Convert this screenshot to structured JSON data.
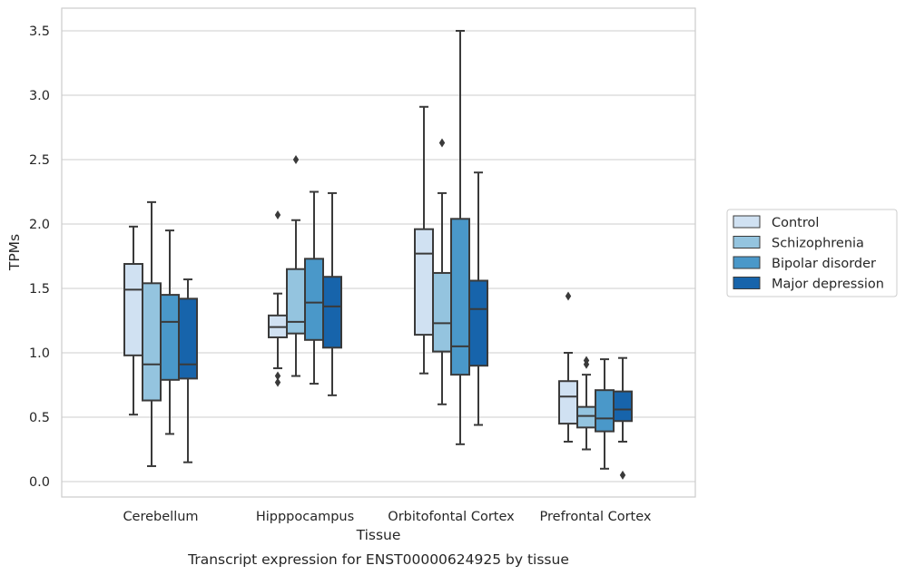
{
  "chart_data": {
    "type": "boxplot",
    "title": "",
    "caption": "Transcript expression for ENST00000624925 by tissue",
    "xlabel": "Tissue",
    "ylabel": "TPMs",
    "ylim": [
      -0.12,
      3.67
    ],
    "yticks": [
      0.0,
      0.5,
      1.0,
      1.5,
      2.0,
      2.5,
      3.0,
      3.5
    ],
    "ytick_labels": [
      "0.0",
      "0.5",
      "1.0",
      "1.5",
      "2.0",
      "2.5",
      "3.0",
      "3.5"
    ],
    "grid": "horizontal",
    "legend_position": "outside-right",
    "categories": [
      "Cerebellum",
      "Hipppocampus",
      "Orbitofontal Cortex",
      "Prefrontal Cortex"
    ],
    "series": [
      {
        "name": "Control",
        "color": "#d0e1f2",
        "boxes": [
          {
            "whislo": 0.52,
            "q1": 0.98,
            "med": 1.49,
            "q3": 1.69,
            "whishi": 1.98,
            "fliers": []
          },
          {
            "whislo": 0.88,
            "q1": 1.12,
            "med": 1.2,
            "q3": 1.29,
            "whishi": 1.46,
            "fliers": [
              2.07,
              0.82,
              0.77
            ]
          },
          {
            "whislo": 0.84,
            "q1": 1.14,
            "med": 1.77,
            "q3": 1.96,
            "whishi": 2.91,
            "fliers": []
          },
          {
            "whislo": 0.31,
            "q1": 0.45,
            "med": 0.66,
            "q3": 0.78,
            "whishi": 1.0,
            "fliers": [
              1.44
            ]
          }
        ]
      },
      {
        "name": "Schizophrenia",
        "color": "#94c4df",
        "boxes": [
          {
            "whislo": 0.12,
            "q1": 0.63,
            "med": 0.91,
            "q3": 1.54,
            "whishi": 2.17,
            "fliers": []
          },
          {
            "whislo": 0.82,
            "q1": 1.15,
            "med": 1.24,
            "q3": 1.65,
            "whishi": 2.03,
            "fliers": [
              2.5
            ]
          },
          {
            "whislo": 0.6,
            "q1": 1.01,
            "med": 1.23,
            "q3": 1.62,
            "whishi": 2.24,
            "fliers": [
              2.63
            ]
          },
          {
            "whislo": 0.25,
            "q1": 0.42,
            "med": 0.51,
            "q3": 0.58,
            "whishi": 0.83,
            "fliers": [
              0.94,
              0.91
            ]
          }
        ]
      },
      {
        "name": "Bipolar disorder",
        "color": "#4a98c9",
        "boxes": [
          {
            "whislo": 0.37,
            "q1": 0.79,
            "med": 1.24,
            "q3": 1.45,
            "whishi": 1.95,
            "fliers": []
          },
          {
            "whislo": 0.76,
            "q1": 1.1,
            "med": 1.39,
            "q3": 1.73,
            "whishi": 2.25,
            "fliers": []
          },
          {
            "whislo": 0.29,
            "q1": 0.83,
            "med": 1.05,
            "q3": 2.04,
            "whishi": 3.5,
            "fliers": []
          },
          {
            "whislo": 0.1,
            "q1": 0.39,
            "med": 0.49,
            "q3": 0.71,
            "whishi": 0.95,
            "fliers": []
          }
        ]
      },
      {
        "name": "Major depression",
        "color": "#1764ab",
        "boxes": [
          {
            "whislo": 0.15,
            "q1": 0.8,
            "med": 0.91,
            "q3": 1.42,
            "whishi": 1.57,
            "fliers": []
          },
          {
            "whislo": 0.67,
            "q1": 1.04,
            "med": 1.36,
            "q3": 1.59,
            "whishi": 2.24,
            "fliers": []
          },
          {
            "whislo": 0.44,
            "q1": 0.9,
            "med": 1.34,
            "q3": 1.56,
            "whishi": 2.4,
            "fliers": []
          },
          {
            "whislo": 0.31,
            "q1": 0.47,
            "med": 0.56,
            "q3": 0.7,
            "whishi": 0.96,
            "fliers": [
              0.05
            ]
          }
        ]
      }
    ],
    "colors": {
      "edge": "#3a3a3a",
      "grid": "#cccccc",
      "frame": "#cccccc",
      "text": "#262626"
    }
  }
}
